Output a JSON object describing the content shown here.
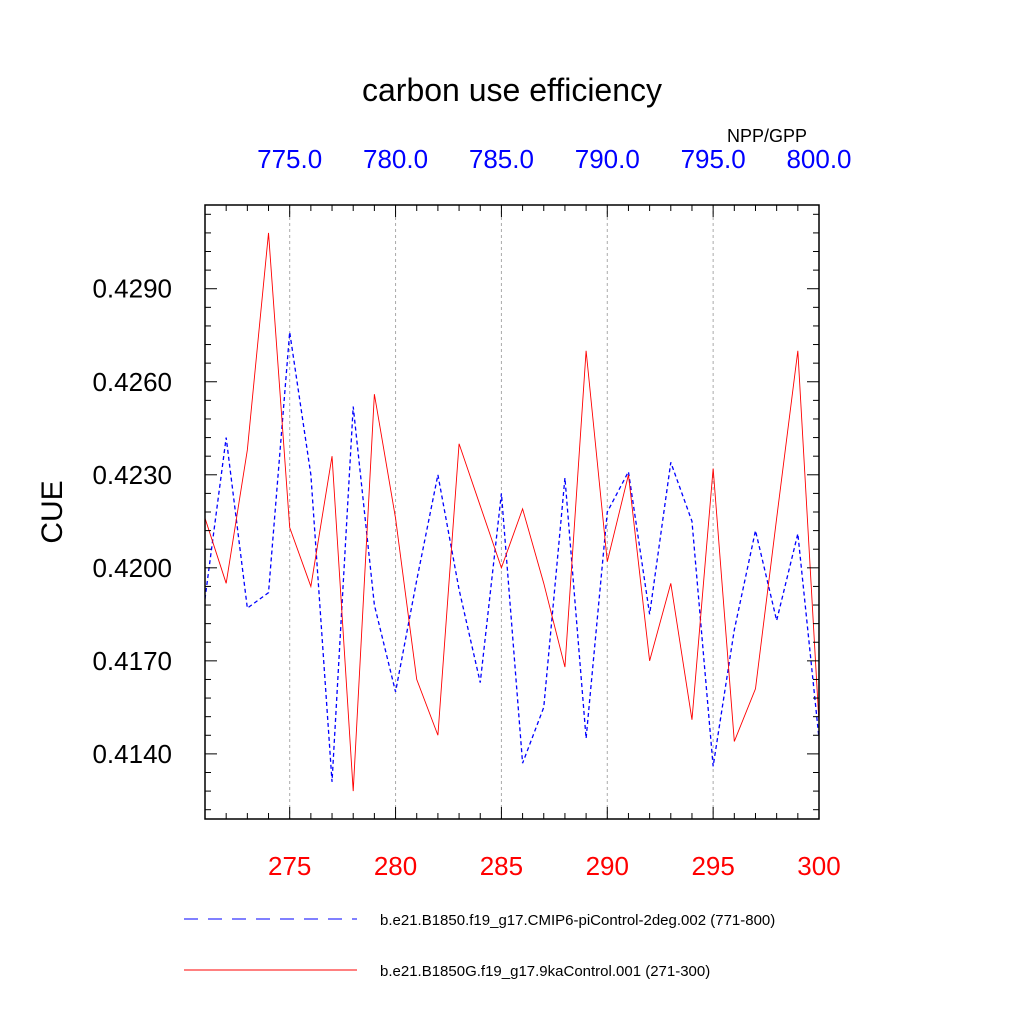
{
  "chart_data": {
    "type": "line",
    "title": "carbon use efficiency",
    "subtitle": "NPP/GPP",
    "ylabel": "CUE",
    "ylim": [
      0.4119,
      0.4317
    ],
    "y_ticks": [
      {
        "value": 0.414,
        "label": "0.4140"
      },
      {
        "value": 0.417,
        "label": "0.4170"
      },
      {
        "value": 0.42,
        "label": "0.4200"
      },
      {
        "value": 0.423,
        "label": "0.4230"
      },
      {
        "value": 0.426,
        "label": "0.4260"
      },
      {
        "value": 0.429,
        "label": "0.4290"
      }
    ],
    "bottom_axis": {
      "range": [
        271,
        300
      ],
      "ticks": [
        {
          "value": 275,
          "label": "275"
        },
        {
          "value": 280,
          "label": "280"
        },
        {
          "value": 285,
          "label": "285"
        },
        {
          "value": 290,
          "label": "290"
        },
        {
          "value": 295,
          "label": "295"
        },
        {
          "value": 300,
          "label": "300"
        }
      ],
      "color": "#ff0000"
    },
    "top_axis": {
      "range": [
        771,
        800
      ],
      "ticks": [
        {
          "value": 775,
          "label": "775.0"
        },
        {
          "value": 780,
          "label": "780.0"
        },
        {
          "value": 785,
          "label": "785.0"
        },
        {
          "value": 790,
          "label": "790.0"
        },
        {
          "value": 795,
          "label": "795.0"
        },
        {
          "value": 800,
          "label": "800.0"
        }
      ],
      "color": "#0000ff"
    },
    "grid": "vertical dashed at major x ticks",
    "series": [
      {
        "name": "b.e21.B1850.f19_g17.CMIP6-piControl-2deg.002 (771-800)",
        "axis": "top",
        "color": "#0000ff",
        "style": "dashed",
        "x": [
          771,
          772,
          773,
          774,
          775,
          776,
          777,
          778,
          779,
          780,
          781,
          782,
          783,
          784,
          785,
          786,
          787,
          788,
          789,
          790,
          791,
          792,
          793,
          794,
          795,
          796,
          797,
          798,
          799,
          800
        ],
        "values": [
          0.419,
          0.4242,
          0.4187,
          0.4192,
          0.4276,
          0.423,
          0.4131,
          0.4252,
          0.4188,
          0.416,
          0.4196,
          0.423,
          0.4193,
          0.4163,
          0.4224,
          0.4137,
          0.4155,
          0.4229,
          0.4145,
          0.4218,
          0.4231,
          0.4185,
          0.4234,
          0.4215,
          0.4136,
          0.418,
          0.4212,
          0.4183,
          0.4211,
          0.4145
        ]
      },
      {
        "name": "b.e21.B1850G.f19_g17.9kaControl.001 (271-300)",
        "axis": "bottom",
        "color": "#ff0000",
        "style": "solid",
        "x": [
          271,
          272,
          273,
          274,
          275,
          276,
          277,
          278,
          279,
          280,
          281,
          282,
          283,
          284,
          285,
          286,
          287,
          288,
          289,
          290,
          291,
          292,
          293,
          294,
          295,
          296,
          297,
          298,
          299,
          300
        ],
        "values": [
          0.4216,
          0.4195,
          0.4238,
          0.4308,
          0.4213,
          0.4194,
          0.4236,
          0.4128,
          0.4256,
          0.4216,
          0.4164,
          0.4146,
          0.424,
          0.422,
          0.42,
          0.4219,
          0.4195,
          0.4168,
          0.427,
          0.4202,
          0.423,
          0.417,
          0.4195,
          0.4151,
          0.4232,
          0.4144,
          0.4161,
          0.4216,
          0.427,
          0.415
        ]
      }
    ],
    "legend": {
      "position": "bottom",
      "entries": [
        "b.e21.B1850.f19_g17.CMIP6-piControl-2deg.002 (771-800)",
        "b.e21.B1850G.f19_g17.9kaControl.001 (271-300)"
      ]
    }
  }
}
